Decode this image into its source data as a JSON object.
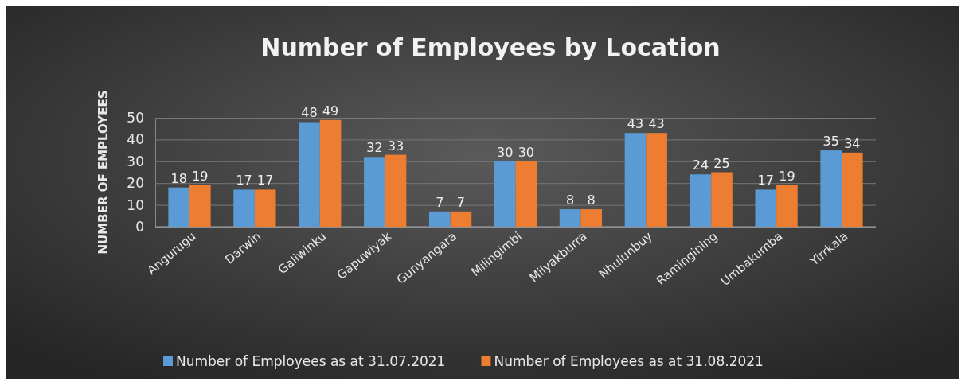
{
  "chart_data": {
    "type": "bar",
    "title": "Number of Employees by Location",
    "ylabel": "NUMBER OF EMPLOYEES",
    "categories": [
      "Angurugu",
      "Darwin",
      "Galiwinku",
      "Gapuwiyak",
      "Gunyangara",
      "Milingimbi",
      "Milyakburra",
      "Nhulunbuy",
      "Ramingining",
      "Umbakumba",
      "Yirrkala"
    ],
    "series": [
      {
        "name": "Number of Employees as at 31.07.2021",
        "color": "#5b9bd5",
        "values": [
          18,
          17,
          48,
          32,
          7,
          30,
          8,
          43,
          24,
          17,
          35
        ]
      },
      {
        "name": "Number of Employees as at 31.08.2021",
        "color": "#ed7d31",
        "values": [
          19,
          17,
          49,
          33,
          7,
          30,
          8,
          43,
          25,
          19,
          34
        ]
      }
    ],
    "ylim": [
      0,
      50
    ],
    "yticks": [
      0,
      10,
      20,
      30,
      40,
      50
    ],
    "grid": "y",
    "data_labels": true,
    "legend": "bottom"
  }
}
